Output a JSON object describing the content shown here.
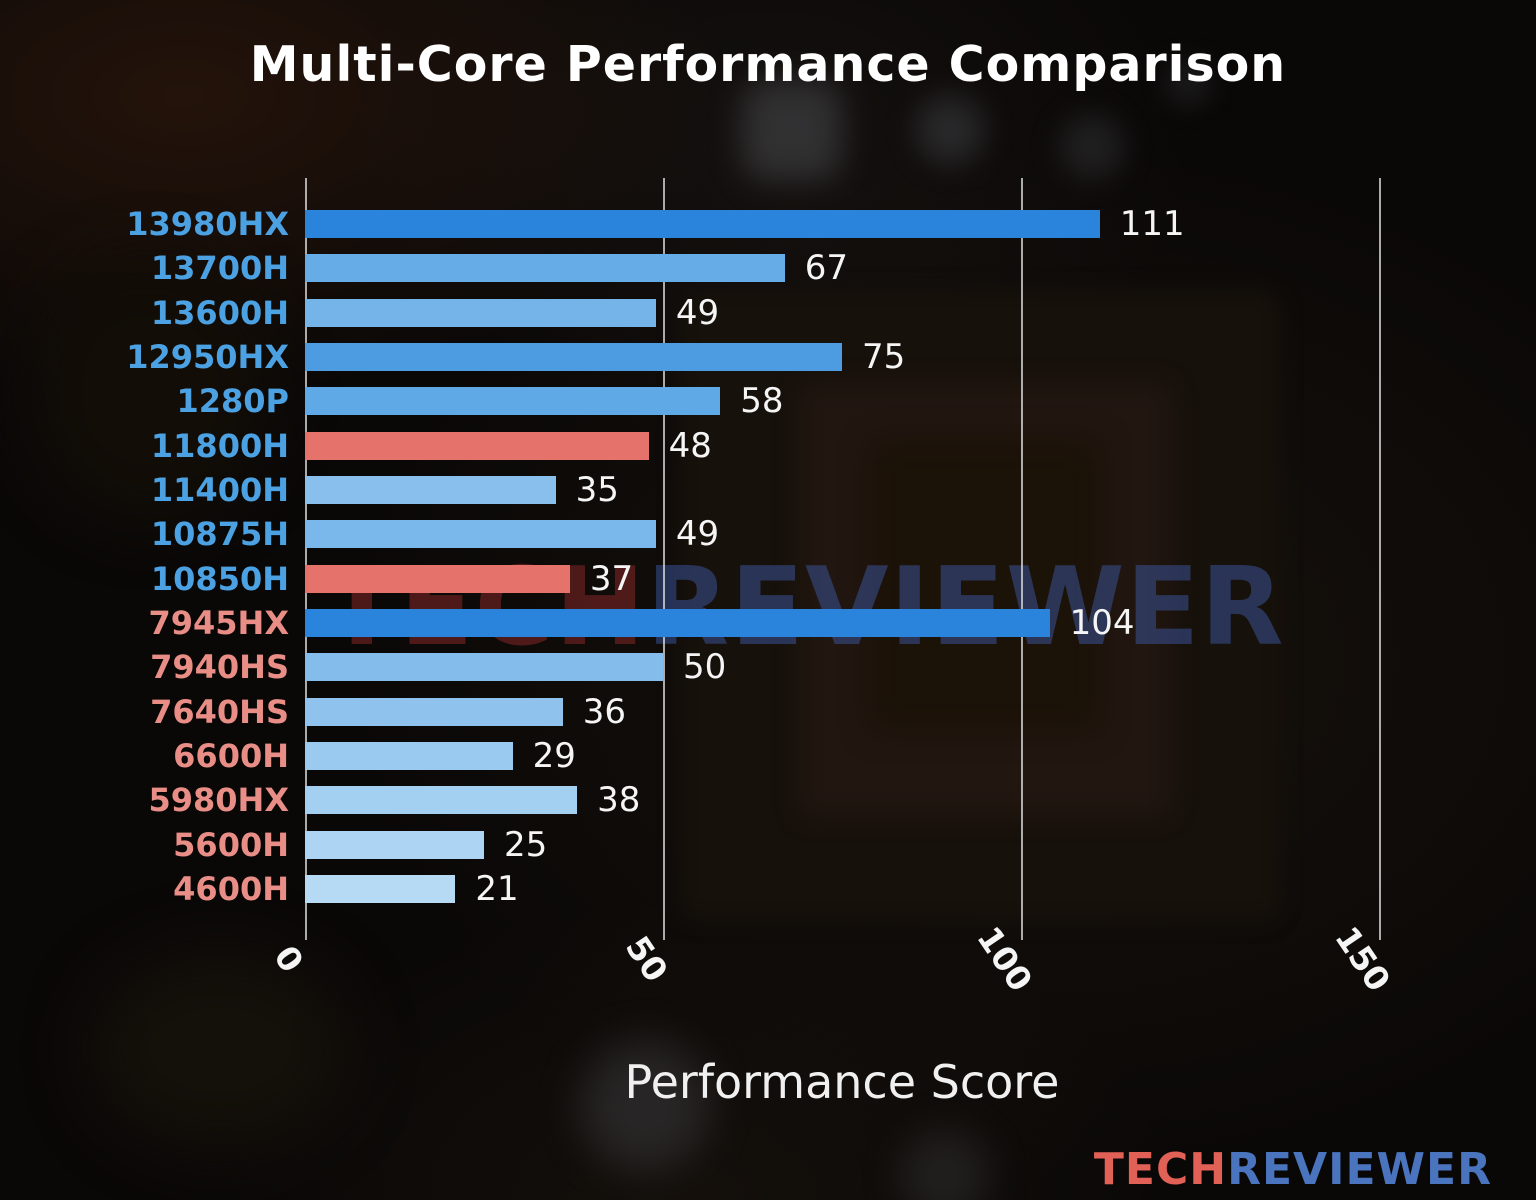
{
  "title": "Multi-Core Performance Comparison",
  "xlabel": "Performance Score",
  "watermark": {
    "tech": "TECH",
    "reviewer": "REVIEWER"
  },
  "logo": {
    "tech": "TECH",
    "reviewer": "REVIEWER"
  },
  "colors": {
    "intel_label": "#4ba1e2",
    "amd_label": "#e98e86",
    "value_label": "#f5f5f5",
    "gridline": "rgba(225,225,225,0.75)"
  },
  "chart_data": {
    "type": "bar",
    "orientation": "horizontal",
    "title": "Multi-Core Performance Comparison",
    "xlabel": "Performance Score",
    "xlim": [
      0,
      150
    ],
    "xticks": [
      "0",
      "50",
      "100",
      "150"
    ],
    "grid": true,
    "legend": false,
    "categories": [
      "13980HX",
      "13700H",
      "13600H",
      "12950HX",
      "1280P",
      "11800H",
      "11400H",
      "10875H",
      "10850H",
      "7945HX",
      "7940HS",
      "7640HS",
      "6600H",
      "5980HX",
      "5600H",
      "4600H"
    ],
    "values": [
      111,
      67,
      49,
      75,
      58,
      48,
      35,
      49,
      37,
      104,
      50,
      36,
      29,
      38,
      25,
      21
    ],
    "bar_colors": [
      "#2b84dc",
      "#66ade7",
      "#74b4e9",
      "#4d9ce2",
      "#5fa9e6",
      "#e5736b",
      "#88bfec",
      "#7ab7ea",
      "#e5736b",
      "#2b84dc",
      "#84bdeb",
      "#8fc3ed",
      "#9acaef",
      "#a3cff0",
      "#add4f2",
      "#b7daf4"
    ],
    "label_groups": [
      "intel",
      "intel",
      "intel",
      "intel",
      "intel",
      "intel",
      "intel",
      "intel",
      "intel",
      "amd",
      "amd",
      "amd",
      "amd",
      "amd",
      "amd",
      "amd"
    ]
  }
}
